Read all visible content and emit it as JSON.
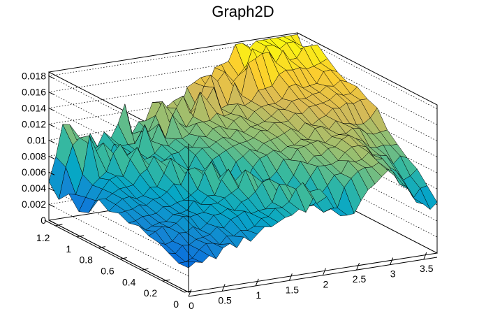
{
  "chart_data": {
    "type": "surface",
    "title": "Graph2D",
    "x_ticks": [
      "0",
      "0.5",
      "1",
      "1.5",
      "2",
      "2.5",
      "3",
      "3.5"
    ],
    "y_ticks": [
      "0",
      "0.2",
      "0.4",
      "0.6",
      "0.8",
      "1",
      "1.2"
    ],
    "z_ticks": [
      "0",
      "0.002",
      "0.004",
      "0.006",
      "0.008",
      "0.01",
      "0.012",
      "0.014",
      "0.016",
      "0.018"
    ],
    "xlim": [
      0,
      3.7
    ],
    "ylim": [
      0,
      1.3
    ],
    "zlim": [
      0,
      0.0185
    ],
    "palette": [
      "#352a87",
      "#0363e1",
      "#1485d4",
      "#06a7c6",
      "#38b99e",
      "#92bf73",
      "#d9ba56",
      "#fcce2e",
      "#f9fb0e"
    ],
    "grid": true,
    "nx": 36,
    "ny": 14,
    "features": {
      "ridge_line": {
        "x_at_y_max": 0.2,
        "x_at_y_min": 2.0,
        "z": 0.0085
      },
      "peak": {
        "x": 3.1,
        "y": 1.25,
        "z": 0.018
      }
    }
  }
}
